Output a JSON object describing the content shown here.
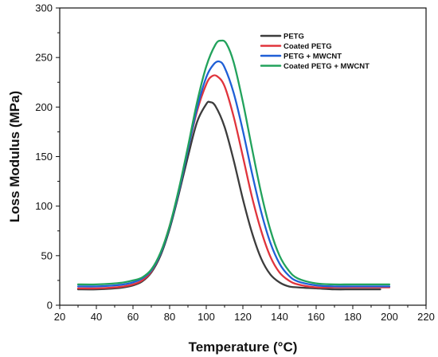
{
  "chart_data": {
    "type": "line",
    "xlabel": "Temperature (°C)",
    "ylabel": "Loss Modulus (MPa)",
    "xlim": [
      20,
      220
    ],
    "ylim": [
      0,
      300
    ],
    "x_ticks": [
      20,
      40,
      60,
      80,
      100,
      120,
      140,
      160,
      180,
      200,
      220
    ],
    "y_ticks": [
      0,
      50,
      100,
      150,
      200,
      250,
      300
    ],
    "grid": false,
    "legend_position": "top-right",
    "series": [
      {
        "name": "PETG",
        "color": "#3c3c3c",
        "x": [
          30,
          40,
          50,
          55,
          60,
          65,
          70,
          75,
          80,
          85,
          90,
          95,
          100,
          102,
          105,
          110,
          115,
          120,
          125,
          130,
          135,
          140,
          145,
          150,
          160,
          170,
          180,
          195
        ],
        "y": [
          16,
          16,
          17,
          18,
          20,
          24,
          33,
          50,
          77,
          112,
          150,
          185,
          203,
          205,
          201,
          180,
          146,
          107,
          73,
          47,
          31,
          23,
          19,
          18,
          17,
          16,
          16,
          16
        ]
      },
      {
        "name": "Coated PETG",
        "color": "#e0343c",
        "x": [
          30,
          40,
          50,
          55,
          60,
          65,
          70,
          75,
          80,
          85,
          90,
          95,
          100,
          103,
          106,
          110,
          115,
          120,
          125,
          130,
          135,
          140,
          145,
          150,
          160,
          170,
          180,
          200
        ],
        "y": [
          17,
          17,
          18,
          19,
          21,
          25,
          34,
          52,
          80,
          115,
          157,
          196,
          223,
          231,
          231,
          221,
          190,
          150,
          109,
          75,
          49,
          33,
          25,
          21,
          18,
          18,
          18,
          18
        ]
      },
      {
        "name": "PETG + MWCNT",
        "color": "#1f5fd6",
        "x": [
          30,
          40,
          50,
          55,
          60,
          65,
          70,
          75,
          80,
          85,
          90,
          95,
          100,
          104,
          107,
          110,
          115,
          120,
          125,
          130,
          135,
          140,
          145,
          150,
          160,
          170,
          180,
          200
        ],
        "y": [
          19,
          19,
          20,
          21,
          23,
          27,
          35,
          52,
          79,
          115,
          157,
          199,
          230,
          243,
          246,
          240,
          214,
          176,
          133,
          94,
          63,
          42,
          30,
          24,
          20,
          19,
          19,
          19
        ]
      },
      {
        "name": "Coated PETG + MWCNT",
        "color": "#22a25c",
        "x": [
          30,
          40,
          50,
          55,
          60,
          65,
          70,
          75,
          80,
          85,
          90,
          95,
          100,
          105,
          108,
          111,
          115,
          120,
          125,
          130,
          135,
          140,
          145,
          150,
          160,
          170,
          180,
          200
        ],
        "y": [
          21,
          21,
          22,
          23,
          25,
          28,
          36,
          53,
          80,
          117,
          160,
          205,
          241,
          263,
          267,
          264,
          245,
          205,
          158,
          113,
          76,
          50,
          35,
          27,
          22,
          21,
          21,
          21
        ]
      }
    ]
  }
}
